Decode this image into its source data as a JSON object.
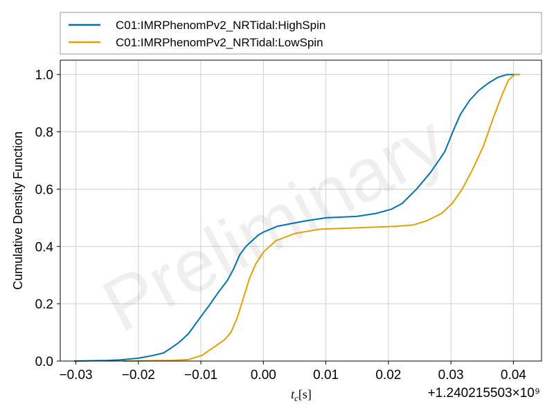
{
  "chart_data": {
    "type": "line",
    "xlabel": "t_c[s]",
    "ylabel": "Cumulative Density Function",
    "x_offset_label": "+1.240215503×10⁹",
    "watermark": "Preliminary",
    "xlim": [
      -0.0325,
      0.0445
    ],
    "ylim": [
      0.0,
      1.05
    ],
    "x_ticks": [
      -0.03,
      -0.02,
      -0.01,
      0.0,
      0.01,
      0.02,
      0.03,
      0.04
    ],
    "x_tick_labels": [
      "−0.03",
      "−0.02",
      "−0.01",
      "0.00",
      "0.01",
      "0.02",
      "0.03",
      "0.04"
    ],
    "y_ticks": [
      0.0,
      0.2,
      0.4,
      0.6,
      0.8,
      1.0
    ],
    "y_tick_labels": [
      "0.0",
      "0.2",
      "0.4",
      "0.6",
      "0.8",
      "1.0"
    ],
    "grid": true,
    "legend_position": "top, above plot",
    "series": [
      {
        "name": "C01:IMRPhenomPv2_NRTidal:HighSpin",
        "color": "#0072b2",
        "x": [
          -0.0303,
          -0.025,
          -0.023,
          -0.02,
          -0.018,
          -0.016,
          -0.0148,
          -0.0135,
          -0.012,
          -0.0105,
          -0.0095,
          -0.0088,
          -0.0072,
          -0.0058,
          -0.0048,
          -0.0038,
          -0.0028,
          -0.0018,
          -0.0008,
          0.0,
          0.0022,
          0.0045,
          0.007,
          0.01,
          0.015,
          0.018,
          0.0205,
          0.0222,
          0.0245,
          0.0268,
          0.029,
          0.0305,
          0.0315,
          0.033,
          0.0345,
          0.036,
          0.0375,
          0.039,
          0.0402,
          0.041
        ],
        "y": [
          0.0,
          0.002,
          0.004,
          0.01,
          0.018,
          0.028,
          0.045,
          0.065,
          0.095,
          0.14,
          0.17,
          0.19,
          0.24,
          0.28,
          0.32,
          0.37,
          0.4,
          0.42,
          0.44,
          0.45,
          0.47,
          0.48,
          0.49,
          0.5,
          0.505,
          0.515,
          0.53,
          0.55,
          0.6,
          0.66,
          0.73,
          0.81,
          0.86,
          0.91,
          0.945,
          0.97,
          0.99,
          1.0,
          1.0,
          1.0
        ]
      },
      {
        "name": "C01:IMRPhenomPv2_NRTidal:LowSpin",
        "color": "#e69f00",
        "x": [
          -0.0225,
          -0.015,
          -0.012,
          -0.0098,
          -0.0078,
          -0.0062,
          -0.0052,
          -0.0042,
          -0.0032,
          -0.0022,
          -0.0012,
          0.0,
          0.002,
          0.005,
          0.009,
          0.015,
          0.021,
          0.024,
          0.0262,
          0.0285,
          0.0302,
          0.0318,
          0.0335,
          0.0352,
          0.0368,
          0.0382,
          0.0392,
          0.0402,
          0.041
        ],
        "y": [
          0.0,
          0.002,
          0.005,
          0.02,
          0.05,
          0.075,
          0.1,
          0.15,
          0.22,
          0.29,
          0.34,
          0.38,
          0.42,
          0.445,
          0.46,
          0.465,
          0.47,
          0.475,
          0.49,
          0.515,
          0.55,
          0.6,
          0.67,
          0.75,
          0.85,
          0.93,
          0.98,
          1.0,
          1.0
        ]
      }
    ]
  }
}
